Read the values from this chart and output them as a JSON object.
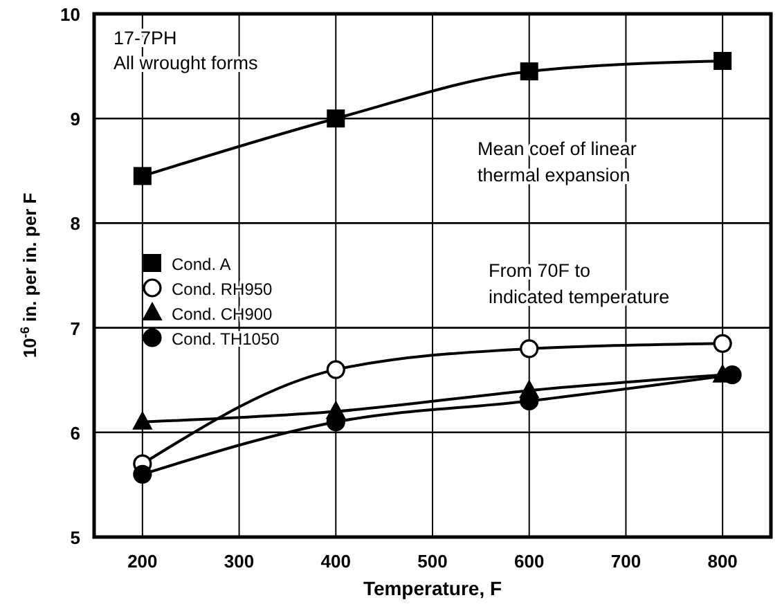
{
  "chart_data": {
    "type": "line",
    "xlabel": "Temperature, F",
    "ylabel": "10$^{-6}$ in. per in. per F",
    "x": [
      200,
      400,
      600,
      800
    ],
    "xlim": [
      150,
      850
    ],
    "xticks": [
      200,
      300,
      400,
      500,
      600,
      700,
      800
    ],
    "ylim": [
      5,
      10
    ],
    "yticks": [
      5,
      6,
      7,
      8,
      9,
      10
    ],
    "grid": true,
    "legend": "left",
    "line_style": "solid",
    "series": [
      {
        "name": "Cond. A",
        "color": "#000000",
        "marker": "square",
        "values": [
          8.45,
          9.0,
          9.45,
          9.55
        ]
      },
      {
        "name": "Cond. RH950",
        "color": "#000000",
        "marker": "circle",
        "values": [
          5.7,
          6.6,
          6.8,
          6.85
        ]
      },
      {
        "name": "Cond. CH900",
        "color": "#000000",
        "marker": "triangle",
        "values": [
          6.1,
          6.2,
          6.4,
          6.55
        ]
      },
      {
        "name": "Cond. TH1050",
        "color": "#000000",
        "marker": "circle",
        "x": [
          200,
          400,
          600,
          810
        ],
        "values": [
          5.6,
          6.1,
          6.3,
          6.55
        ]
      }
    ],
    "annotations": [
      "17-7PH",
      "All wrought forms",
      "Mean coef of linear thermal expansion",
      "From 70F to indicated temperature"
    ]
  }
}
